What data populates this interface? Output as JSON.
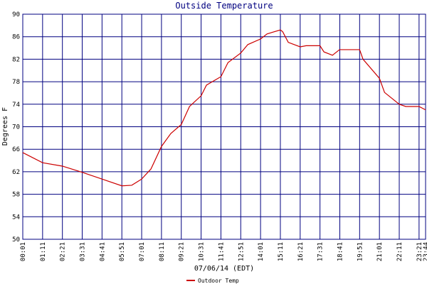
{
  "chart_data": {
    "type": "line",
    "title": "Outside Temperature",
    "x_label": "07/06/14 (EDT)",
    "y_label": "Degrees F",
    "xlim": [
      1,
      1424
    ],
    "ylim": [
      50,
      90
    ],
    "xticks": [
      {
        "value": 1,
        "label": "00:01"
      },
      {
        "value": 71,
        "label": "01:11"
      },
      {
        "value": 141,
        "label": "02:21"
      },
      {
        "value": 211,
        "label": "03:31"
      },
      {
        "value": 281,
        "label": "04:41"
      },
      {
        "value": 351,
        "label": "05:51"
      },
      {
        "value": 421,
        "label": "07:01"
      },
      {
        "value": 491,
        "label": "08:11"
      },
      {
        "value": 561,
        "label": "09:21"
      },
      {
        "value": 631,
        "label": "10:31"
      },
      {
        "value": 701,
        "label": "11:41"
      },
      {
        "value": 771,
        "label": "12:51"
      },
      {
        "value": 841,
        "label": "14:01"
      },
      {
        "value": 911,
        "label": "15:11"
      },
      {
        "value": 981,
        "label": "16:21"
      },
      {
        "value": 1051,
        "label": "17:31"
      },
      {
        "value": 1121,
        "label": "18:41"
      },
      {
        "value": 1191,
        "label": "19:51"
      },
      {
        "value": 1261,
        "label": "21:01"
      },
      {
        "value": 1331,
        "label": "22:11"
      },
      {
        "value": 1401,
        "label": "23:21"
      },
      {
        "value": 1424,
        "label": "23:44"
      }
    ],
    "yticks": [
      50,
      54,
      58,
      62,
      66,
      70,
      74,
      78,
      82,
      86,
      90
    ],
    "grid": true,
    "legend": "bottom",
    "x": [
      1,
      71,
      141,
      211,
      281,
      351,
      386,
      421,
      454,
      491,
      524,
      561,
      590,
      631,
      650,
      701,
      726,
      771,
      796,
      841,
      864,
      911,
      919,
      939,
      981,
      1002,
      1051,
      1065,
      1095,
      1120,
      1153,
      1191,
      1203,
      1261,
      1279,
      1331,
      1354,
      1401,
      1424
    ],
    "series": [
      {
        "name": "Outdoor Temp",
        "color": "#cc0000",
        "values": [
          65.4,
          63.6,
          63.0,
          61.9,
          60.7,
          59.5,
          59.6,
          60.7,
          62.5,
          66.5,
          68.8,
          70.4,
          73.6,
          75.5,
          77.4,
          78.9,
          81.4,
          83.1,
          84.6,
          85.6,
          86.5,
          87.2,
          86.9,
          85.0,
          84.2,
          84.4,
          84.4,
          83.3,
          82.7,
          83.7,
          83.7,
          83.7,
          82.0,
          78.6,
          76.1,
          74.0,
          73.6,
          73.6,
          73.0
        ]
      }
    ]
  }
}
